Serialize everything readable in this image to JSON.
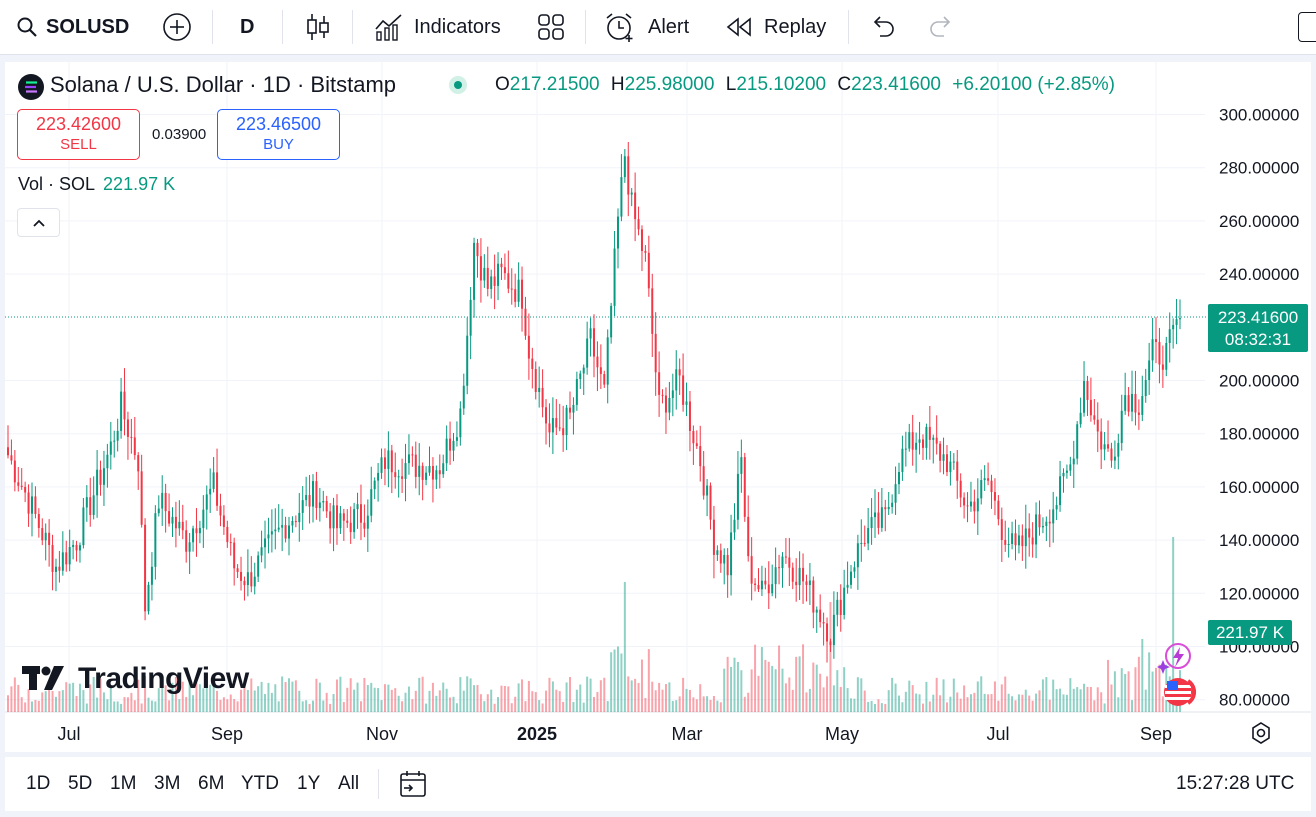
{
  "toolbar": {
    "symbol": "SOLUSD",
    "interval": "D",
    "indicators_label": "Indicators",
    "alert_label": "Alert",
    "replay_label": "Replay"
  },
  "legend": {
    "title": "Solana / U.S. Dollar · 1D · Bitstamp",
    "open_label": "O",
    "open": "217.21500",
    "high_label": "H",
    "high": "225.98000",
    "low_label": "L",
    "low": "215.10200",
    "close_label": "C",
    "close": "223.41600",
    "change": "+6.20100 (+2.85%)"
  },
  "trade": {
    "sell_price": "223.42600",
    "sell_label": "SELL",
    "spread": "0.03900",
    "buy_price": "223.46500",
    "buy_label": "BUY"
  },
  "volume_legend": {
    "label": "Vol · SOL",
    "value": "221.97 K"
  },
  "price_tag": {
    "price": "223.41600",
    "countdown": "08:32:31"
  },
  "volume_tag": "221.97 K",
  "brand": "TradingView",
  "axis": {
    "price_labels": [
      "300.00000",
      "280.00000",
      "260.00000",
      "240.00000",
      "200.00000",
      "180.00000",
      "160.00000",
      "140.00000",
      "120.00000",
      "100.00000",
      "80.00000"
    ],
    "time_labels": [
      "Jul",
      "Sep",
      "Nov",
      "2025",
      "Mar",
      "May",
      "Jul",
      "Sep"
    ]
  },
  "ranges": [
    "1D",
    "5D",
    "1M",
    "3M",
    "6M",
    "YTD",
    "1Y",
    "All"
  ],
  "clock": "15:27:28 UTC",
  "colors": {
    "up": "#089981",
    "down": "#f23645",
    "accent": "#2962ff"
  },
  "chart_data": {
    "type": "candlestick",
    "last_price": 223.416,
    "ylim": [
      80,
      300
    ],
    "anchors": [
      [
        0,
        172
      ],
      [
        6,
        155
      ],
      [
        14,
        130
      ],
      [
        20,
        140
      ],
      [
        30,
        175
      ],
      [
        33,
        190
      ],
      [
        38,
        170
      ],
      [
        40,
        115
      ],
      [
        44,
        155
      ],
      [
        52,
        140
      ],
      [
        60,
        160
      ],
      [
        66,
        130
      ],
      [
        70,
        125
      ],
      [
        80,
        145
      ],
      [
        90,
        158
      ],
      [
        96,
        145
      ],
      [
        104,
        150
      ],
      [
        110,
        170
      ],
      [
        118,
        168
      ],
      [
        126,
        168
      ],
      [
        132,
        188
      ],
      [
        134,
        218
      ],
      [
        136,
        252
      ],
      [
        140,
        235
      ],
      [
        144,
        240
      ],
      [
        150,
        232
      ],
      [
        152,
        212
      ],
      [
        158,
        180
      ],
      [
        164,
        186
      ],
      [
        170,
        215
      ],
      [
        174,
        195
      ],
      [
        178,
        260
      ],
      [
        180,
        285
      ],
      [
        182,
        265
      ],
      [
        186,
        245
      ],
      [
        190,
        190
      ],
      [
        196,
        200
      ],
      [
        202,
        170
      ],
      [
        206,
        140
      ],
      [
        210,
        130
      ],
      [
        214,
        170
      ],
      [
        216,
        130
      ],
      [
        220,
        120
      ],
      [
        226,
        135
      ],
      [
        232,
        125
      ],
      [
        236,
        115
      ],
      [
        240,
        105
      ],
      [
        246,
        130
      ],
      [
        250,
        142
      ],
      [
        256,
        148
      ],
      [
        260,
        170
      ],
      [
        266,
        180
      ],
      [
        274,
        170
      ],
      [
        280,
        152
      ],
      [
        286,
        162
      ],
      [
        290,
        145
      ],
      [
        294,
        135
      ],
      [
        300,
        145
      ],
      [
        306,
        155
      ],
      [
        310,
        168
      ],
      [
        314,
        200
      ],
      [
        318,
        180
      ],
      [
        322,
        170
      ],
      [
        326,
        195
      ],
      [
        330,
        192
      ],
      [
        334,
        210
      ],
      [
        338,
        210
      ],
      [
        342,
        223.4
      ]
    ]
  }
}
